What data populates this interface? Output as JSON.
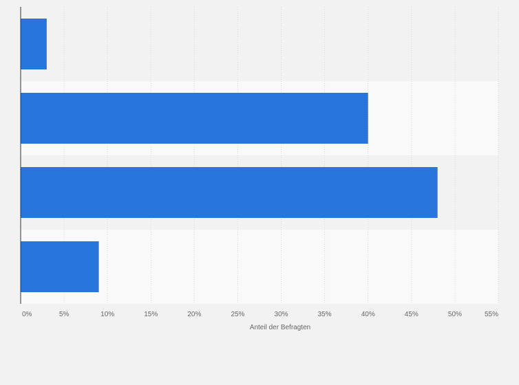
{
  "chart_data": {
    "type": "bar",
    "orientation": "horizontal",
    "categories": [
      "",
      "",
      "",
      ""
    ],
    "values": [
      3,
      40,
      48,
      9
    ],
    "title": "",
    "xlabel": "Anteil der Befragten",
    "ylabel": "",
    "xlim": [
      0,
      55
    ],
    "ticks": [
      0,
      5,
      10,
      15,
      20,
      25,
      30,
      35,
      40,
      45,
      50,
      55
    ],
    "tick_labels": [
      "0%",
      "5%",
      "10%",
      "15%",
      "20%",
      "25%",
      "30%",
      "35%",
      "40%",
      "45%",
      "50%",
      "55%"
    ],
    "grid": true,
    "legend": "none",
    "colors": {
      "bar": "#2876dd",
      "band_dark": "#f2f2f2",
      "band_light": "#f9f9f9",
      "grid": "#d8d8d8",
      "axis": "#333333"
    }
  }
}
